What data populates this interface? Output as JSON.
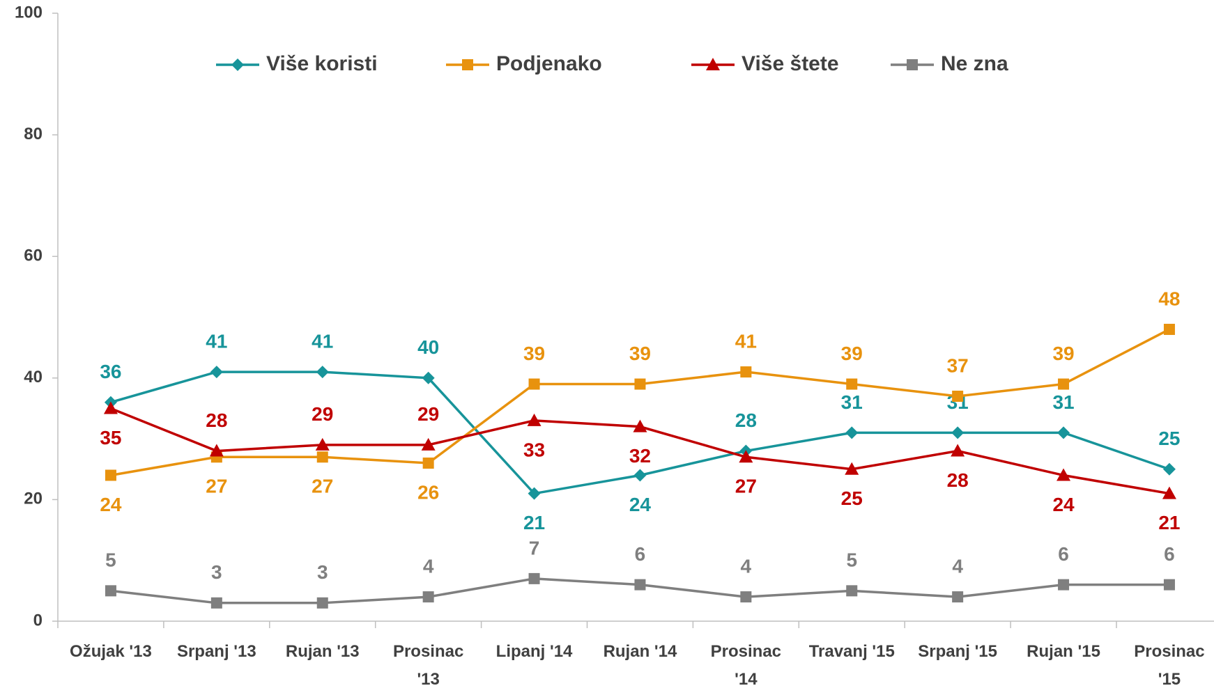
{
  "chart_data": {
    "type": "line",
    "categories": [
      "Ožujak '13",
      "Srpanj '13",
      "Rujan '13",
      "Prosinac '13",
      "Lipanj '14",
      "Rujan '14",
      "Prosinac '14",
      "Travanj '15",
      "Srpanj '15",
      "Rujan '15",
      "Prosinac '15"
    ],
    "series": [
      {
        "name": "Više koristi",
        "color": "#17949a",
        "marker": "diamond",
        "values": [
          36,
          41,
          41,
          40,
          21,
          24,
          28,
          31,
          31,
          31,
          25
        ]
      },
      {
        "name": "Podjenako",
        "color": "#e8920e",
        "marker": "square",
        "values": [
          24,
          27,
          27,
          26,
          39,
          39,
          41,
          39,
          37,
          39,
          48
        ]
      },
      {
        "name": "Više štete",
        "color": "#c00000",
        "marker": "triangle",
        "values": [
          35,
          28,
          29,
          29,
          33,
          32,
          27,
          25,
          28,
          24,
          21
        ]
      },
      {
        "name": "Ne zna",
        "color": "#7f7f7f",
        "marker": "square",
        "values": [
          5,
          3,
          3,
          4,
          7,
          6,
          4,
          5,
          4,
          6,
          6
        ]
      }
    ],
    "ylim": [
      0,
      100
    ],
    "yticks": [
      0,
      20,
      40,
      60,
      80,
      100
    ],
    "legend": "top"
  }
}
